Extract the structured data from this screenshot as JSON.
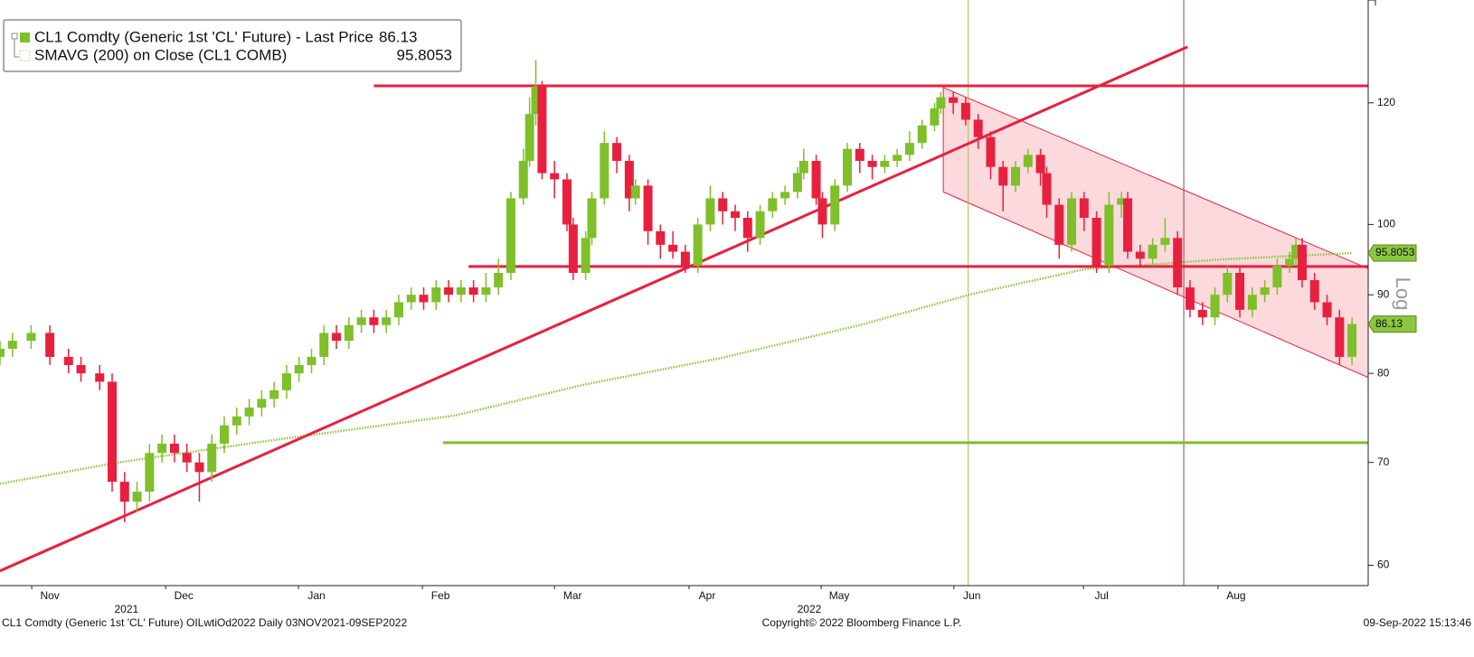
{
  "chart_data": {
    "type": "candlestick",
    "log_scale": true,
    "axis_label": "Log",
    "xlim": [
      0,
      219.6
    ],
    "ylim": [
      58.2,
      140
    ],
    "yticks": [
      60,
      70,
      80,
      90,
      100,
      120
    ],
    "xticks": [
      {
        "value": 8,
        "label": "Nov"
      },
      {
        "value": 29.5,
        "label": "Dec"
      },
      {
        "value": 50.8,
        "label": "Jan"
      },
      {
        "value": 70.7,
        "label": "Feb"
      },
      {
        "value": 91.9,
        "label": "Mar"
      },
      {
        "value": 113.5,
        "label": "Apr"
      },
      {
        "value": 134.7,
        "label": "May"
      },
      {
        "value": 156,
        "label": "Jun"
      },
      {
        "value": 176.8,
        "label": "Jul"
      },
      {
        "value": 198.4,
        "label": "Aug"
      }
    ],
    "years": [
      {
        "x": 20.3,
        "label": "2021"
      },
      {
        "x": 129.9,
        "label": "2022"
      }
    ],
    "series": [
      {
        "name": "CL1 Comdty (Generic 1st 'CL' Future) - Last Price",
        "up_color": "#7fbf2a",
        "down_color": "#e8203f",
        "x": [
          0,
          2,
          5,
          8,
          11,
          13,
          16,
          18,
          20,
          22,
          24,
          26,
          28,
          30,
          32,
          34,
          36,
          38,
          40,
          42,
          44,
          46,
          48,
          50,
          52,
          54,
          56,
          58,
          60,
          62,
          64,
          66,
          68,
          70,
          72,
          74,
          76,
          78,
          80,
          82,
          84,
          85,
          86,
          87,
          89,
          91,
          92,
          94,
          95,
          97,
          99,
          101,
          102,
          104,
          106,
          108,
          110,
          112,
          114,
          116,
          118,
          120,
          122,
          124,
          126,
          128,
          129,
          131,
          132,
          134,
          136,
          138,
          140,
          142,
          144,
          146,
          148,
          150,
          151,
          153,
          155,
          157,
          159,
          161,
          163,
          165,
          167,
          168,
          170,
          172,
          174,
          176,
          178,
          180,
          181,
          183,
          185,
          187,
          189,
          191,
          193,
          195,
          197,
          199,
          201,
          203,
          205,
          207,
          208,
          209,
          211,
          213,
          215,
          217
        ],
        "open": [
          82,
          83,
          84,
          85,
          82,
          81,
          80,
          79,
          68,
          66,
          67,
          71,
          72,
          71,
          70,
          69,
          72,
          74,
          75,
          76,
          77,
          78,
          80,
          81,
          82,
          85,
          84,
          86,
          87,
          86,
          87,
          89,
          90,
          89,
          91,
          90,
          91,
          90,
          91,
          93,
          104,
          110,
          118,
          123,
          108,
          107,
          100,
          93,
          98,
          104,
          113,
          110,
          104,
          106,
          99,
          97,
          96,
          94,
          100,
          104,
          102,
          101,
          98,
          102,
          104,
          105,
          108,
          110,
          104,
          100,
          106,
          112,
          110,
          109,
          110,
          111,
          113,
          116,
          119,
          121,
          120,
          117,
          114,
          109,
          106,
          109,
          111,
          108,
          103,
          97,
          104,
          101,
          94,
          103,
          104,
          96,
          95,
          97,
          98,
          91,
          88,
          87,
          90,
          93,
          88,
          90,
          91,
          94,
          95,
          97,
          92,
          89,
          87,
          82
        ],
        "high": [
          84,
          85,
          86,
          86,
          83,
          82,
          81,
          80,
          69,
          68,
          72,
          73,
          73,
          72,
          71,
          73,
          75,
          76,
          77,
          78,
          79,
          81,
          82,
          83,
          86,
          86,
          87,
          88,
          88,
          88,
          90,
          91,
          91,
          92,
          92,
          92,
          92,
          93,
          95,
          105,
          112,
          121,
          128,
          124,
          110,
          108,
          101,
          99,
          105,
          115,
          114,
          111,
          107,
          107,
          100,
          99,
          97,
          101,
          106,
          105,
          103,
          102,
          103,
          105,
          106,
          109,
          112,
          111,
          105,
          107,
          113,
          113,
          111,
          111,
          112,
          115,
          117,
          120,
          122,
          122,
          121,
          118,
          115,
          110,
          110,
          112,
          112,
          109,
          104,
          105,
          105,
          102,
          105,
          105,
          105,
          97,
          98,
          101,
          99,
          92,
          89,
          91,
          94,
          94,
          91,
          92,
          95,
          96,
          98,
          98,
          93,
          90,
          88,
          87
        ],
        "low": [
          81,
          82,
          83,
          81,
          80,
          79,
          78,
          67,
          64,
          65,
          66,
          70,
          70,
          69,
          66,
          68,
          71,
          73,
          74,
          75,
          76,
          77,
          79,
          80,
          81,
          83,
          83,
          85,
          85,
          85,
          86,
          88,
          88,
          88,
          89,
          89,
          89,
          89,
          90,
          92,
          103,
          109,
          116,
          107,
          104,
          99,
          92,
          92,
          97,
          103,
          108,
          102,
          103,
          97,
          95,
          95,
          93,
          93,
          99,
          100,
          99,
          96,
          97,
          101,
          103,
          104,
          107,
          103,
          98,
          99,
          105,
          108,
          107,
          108,
          109,
          110,
          112,
          115,
          118,
          118,
          116,
          112,
          107,
          102,
          105,
          108,
          106,
          101,
          95,
          96,
          99,
          93,
          93,
          101,
          95,
          94,
          94,
          96,
          90,
          87,
          86,
          86,
          89,
          87,
          87,
          89,
          90,
          93,
          94,
          91,
          88,
          86,
          81,
          81
        ],
        "close": [
          83,
          84,
          85,
          82,
          81,
          80,
          79,
          68,
          66,
          67,
          71,
          72,
          71,
          70,
          69,
          72,
          74,
          75,
          76,
          77,
          78,
          80,
          81,
          82,
          85,
          84,
          86,
          87,
          86,
          87,
          89,
          90,
          89,
          91,
          90,
          91,
          90,
          91,
          93,
          104,
          110,
          118,
          123,
          108,
          107,
          100,
          93,
          98,
          104,
          113,
          110,
          104,
          106,
          99,
          97,
          96,
          94,
          100,
          104,
          102,
          101,
          98,
          102,
          104,
          105,
          108,
          110,
          104,
          100,
          106,
          112,
          110,
          109,
          110,
          111,
          113,
          116,
          119,
          121,
          120,
          117,
          114,
          109,
          106,
          109,
          111,
          108,
          103,
          97,
          104,
          101,
          94,
          103,
          104,
          96,
          95,
          97,
          98,
          91,
          88,
          87,
          90,
          93,
          88,
          90,
          91,
          94,
          95,
          97,
          92,
          89,
          87,
          82,
          86.13
        ]
      },
      {
        "name": "SMAVG (200)  on Close (CL1 COMB)",
        "color": "#8cc63f",
        "x": [
          0,
          19,
          43,
          73,
          94,
          116,
          138,
          156,
          174,
          196,
          217
        ],
        "values": [
          67.8,
          70,
          72.3,
          75.1,
          78.7,
          81.9,
          86,
          90.1,
          93.5,
          94.9,
          95.8053
        ]
      }
    ],
    "lines": [
      {
        "color": "#e8203f",
        "x": [
          60,
          219.6
        ],
        "values": [
          123.1,
          123.1
        ]
      },
      {
        "color": "#e8203f",
        "x": [
          75.2,
          219.6
        ],
        "values": [
          93.9,
          93.9
        ]
      },
      {
        "color": "#7fbf2a",
        "x": [
          71.1,
          219.6
        ],
        "values": [
          72.1,
          72.1
        ]
      },
      {
        "color": "#e8203f",
        "x": [
          0,
          190.6
        ],
        "values": [
          59.5,
          130.5
        ]
      }
    ],
    "channel": {
      "color": "#e8203f",
      "x": [
        151.4,
        219.6
      ],
      "upper": [
        122.8,
        93.6
      ],
      "lower": [
        105,
        79.5
      ]
    },
    "vlines": [
      {
        "x": 155.4,
        "color": "#9cc24a"
      },
      {
        "x": 190,
        "color": "#a0405a"
      }
    ],
    "footer": {
      "left": "CL1 Comdty (Generic 1st 'CL' Future) OILwtiOd2022  Daily 03NOV2021-09SEP2022",
      "center": "Copyright© 2022 Bloomberg Finance L.P.",
      "right": "09-Sep-2022 15:13:46"
    }
  }
}
